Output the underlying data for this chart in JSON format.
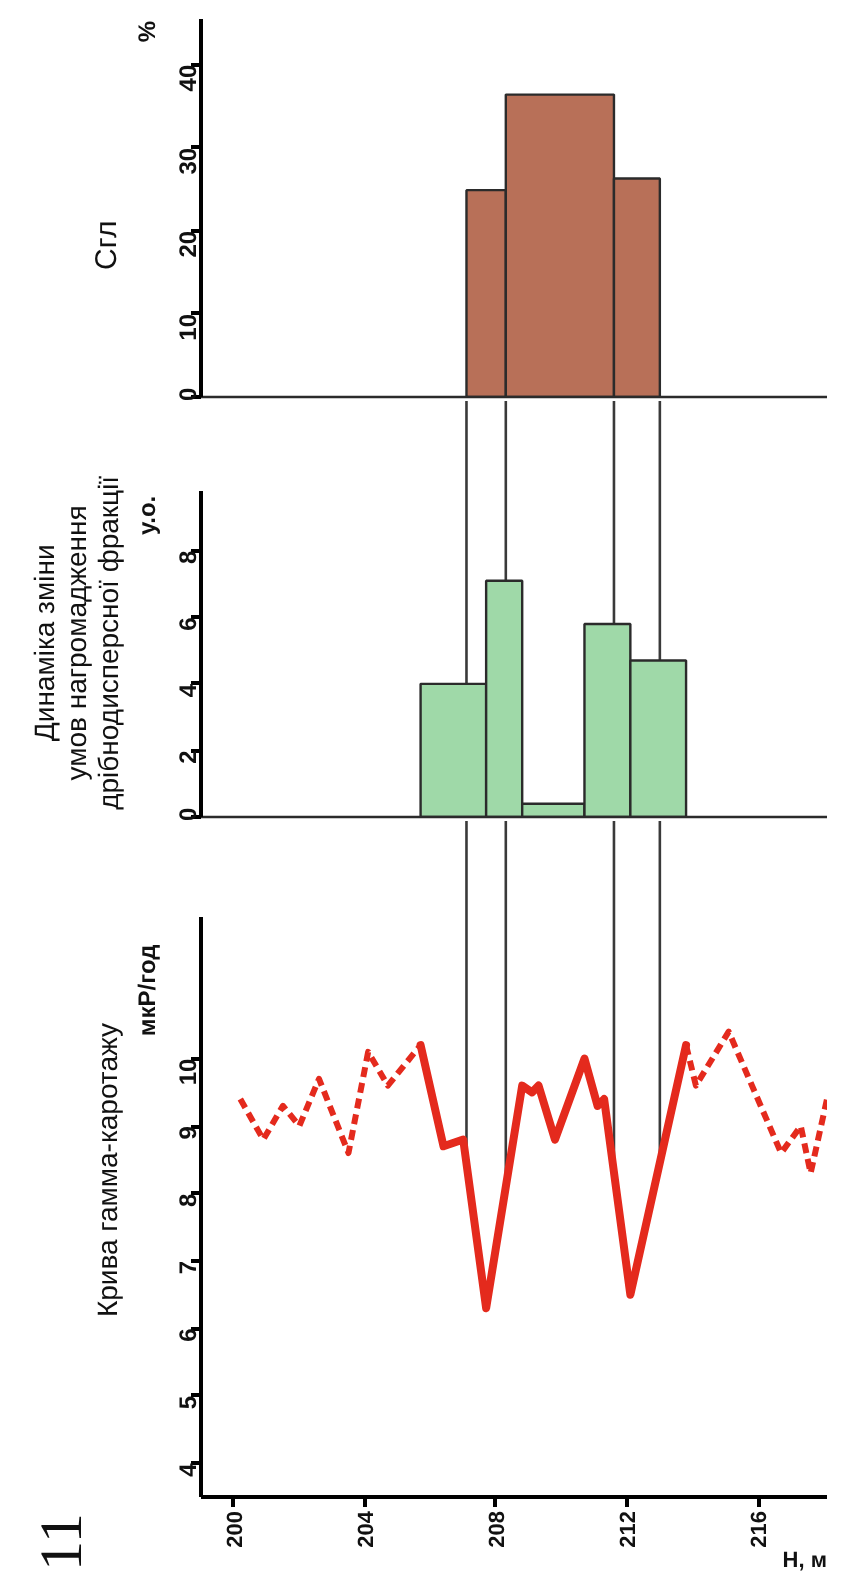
{
  "chart_data": [
    {
      "type": "histogram",
      "title": "Cгл",
      "ylabel": "%",
      "bins": [
        207.1,
        208.3,
        211.6,
        213.0
      ],
      "values": [
        24.9,
        36.4,
        26.3
      ],
      "color": "#b87058",
      "xlim": [
        199.0,
        218.1
      ],
      "ylim": [
        0,
        45.5
      ],
      "yticks": [
        0,
        10,
        20,
        30,
        40
      ],
      "tick_labels": "y"
    },
    {
      "type": "histogram",
      "title": "Динаміка зміни\nумов нагромадження\nдрібнодисперсної фракції",
      "ylabel": "у.о.",
      "bins": [
        205.7,
        207.7,
        208.8,
        210.7,
        212.1,
        213.8
      ],
      "values": [
        4.0,
        7.1,
        0.4,
        5.8,
        4.7
      ],
      "color": "#9fd9a8",
      "xlim": [
        199.0,
        218.1
      ],
      "ylim": [
        0,
        9.8
      ],
      "yticks": [
        0,
        2,
        4,
        6,
        8
      ],
      "tick_labels": "y",
      "ref_lines": [
        {
          "axis": "x",
          "value": 207.1
        },
        {
          "axis": "x",
          "value": 208.3
        },
        {
          "axis": "x",
          "value": 211.6
        },
        {
          "axis": "x",
          "value": 213.0
        }
      ]
    },
    {
      "type": "line",
      "title": "Крива гамма-каротажу",
      "ylabel": "мкР/год",
      "xlabel": "Н, м",
      "annotations": [
        "11"
      ],
      "series": [
        {
          "color": "#e42a1d",
          "line_style": "dashed",
          "x": [
            200.2,
            200.9,
            201.5,
            202.0,
            202.6,
            203.5,
            204.1,
            204.7,
            205.7
          ],
          "values": [
            9.4,
            8.8,
            9.3,
            9.0,
            9.7,
            8.6,
            10.1,
            9.6,
            10.2
          ]
        },
        {
          "color": "#e42a1d",
          "line_style": "solid",
          "x": [
            205.7,
            206.4,
            207.0,
            207.7,
            208.8,
            209.1,
            209.3,
            209.8,
            210.7,
            211.1,
            211.3,
            212.1,
            213.8
          ],
          "values": [
            10.2,
            8.7,
            8.8,
            6.3,
            9.6,
            9.5,
            9.6,
            8.8,
            10.0,
            9.3,
            9.4,
            6.5,
            10.2
          ]
        },
        {
          "color": "#e42a1d",
          "line_style": "dashed",
          "x": [
            213.8,
            214.1,
            215.1,
            216.7,
            217.3,
            217.6,
            218.1
          ],
          "values": [
            10.2,
            9.6,
            10.4,
            8.6,
            9.0,
            8.3,
            9.4
          ]
        }
      ],
      "xlim": [
        199.0,
        218.1
      ],
      "ylim": [
        3.5,
        12.1
      ],
      "xticks": [
        200,
        204,
        208,
        212,
        216
      ],
      "yticks": [
        4,
        5,
        6,
        7,
        8,
        9,
        10
      ],
      "ref_lines": [
        {
          "axis": "x",
          "value": 207.1
        },
        {
          "axis": "x",
          "value": 208.3
        },
        {
          "axis": "x",
          "value": 211.6
        },
        {
          "axis": "x",
          "value": 213.0
        }
      ]
    }
  ]
}
